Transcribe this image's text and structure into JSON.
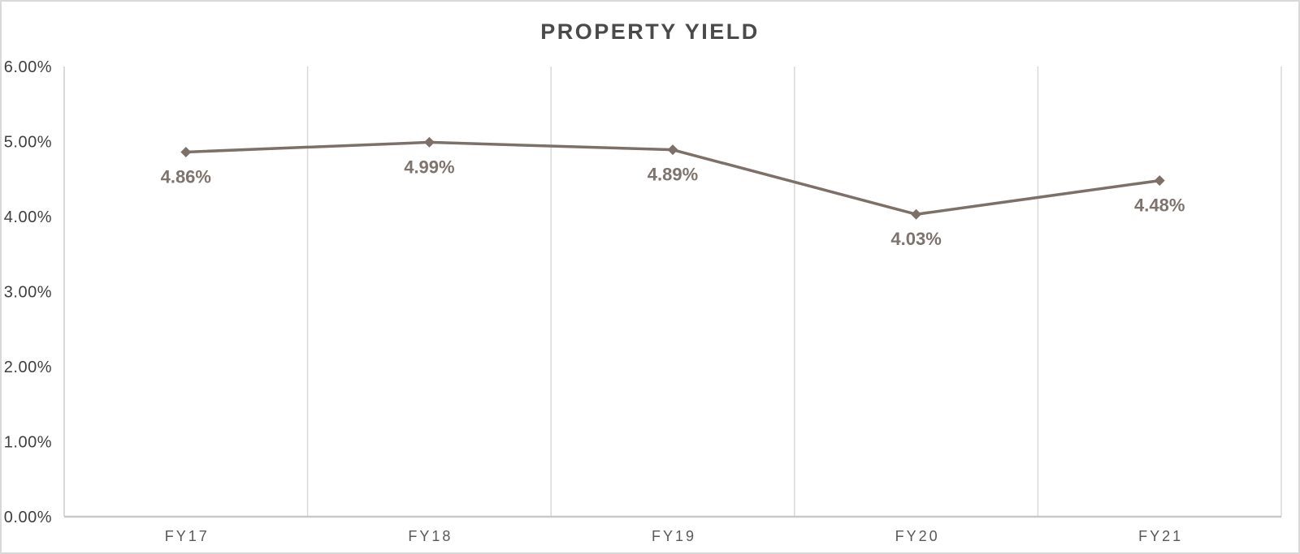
{
  "page": {
    "background": "#ffffff",
    "border_color": "#d9d9d9"
  },
  "chart_data": {
    "type": "line",
    "title": "PROPERTY YIELD",
    "categories": [
      "FY17",
      "FY18",
      "FY19",
      "FY20",
      "FY21"
    ],
    "series": [
      {
        "name": "Property Yield",
        "values": [
          4.86,
          4.99,
          4.89,
          4.03,
          4.48
        ],
        "data_labels": [
          "4.86%",
          "4.99%",
          "4.89%",
          "4.03%",
          "4.48%"
        ]
      }
    ],
    "xlabel": "",
    "ylabel": "",
    "ylim": [
      0,
      6
    ],
    "y_tick_labels": [
      "0.00%",
      "1.00%",
      "2.00%",
      "3.00%",
      "4.00%",
      "5.00%",
      "6.00%"
    ],
    "grid": "vertical-only",
    "legend": "none",
    "marker": "diamond",
    "colors": {
      "line": "#7C7069",
      "marker": "#7C7069",
      "data_label": "#7E736D",
      "title": "#4A4A4A",
      "y_tick": "#404040",
      "x_tick": "#595959",
      "gridline": "#D9D9D9",
      "axis": "#C9C9C9"
    }
  }
}
